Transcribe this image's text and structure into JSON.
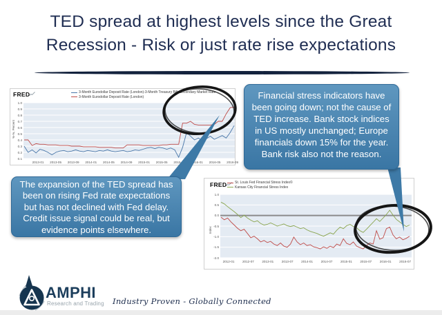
{
  "slide": {
    "title_line1": "TED spread at highest levels since the Great",
    "title_line2": "Recession - Risk or just rate rise expectations"
  },
  "callouts": {
    "left": "The expansion of the TED spread has been on rising Fed rate expectations but has not declined with Fed delay.  Credit issue signal could be real, but evidence points elsewhere.",
    "right": "Financial stress indicators have been going down; not the cause of TED increase. Bank stock indices in US mostly unchanged; Europe financials down 15% for the year. Bank risk also not the reason."
  },
  "footer": {
    "brand": "AMPHI",
    "brand_sub": "Research and Trading",
    "tagline": "Industry Proven - Globally Connected"
  },
  "colors": {
    "title_navy": "#1f2d52",
    "callout_blue": "#3a76a4",
    "annotation_black": "#161616",
    "fred_plot_bg": "#e4ebf3",
    "series_blue": "#4876a8",
    "series_red": "#bf4a47",
    "series_green": "#8aa54e"
  },
  "chart_data": [
    {
      "type": "line",
      "source_label": "FRED",
      "title": "",
      "xlabel": "",
      "ylabel": "%-%, Percent",
      "ylim": [
        0.1,
        1.0
      ],
      "yticks": [
        1.0,
        0.9,
        0.8,
        0.7,
        0.6,
        0.5,
        0.4,
        0.3,
        0.2,
        0.1
      ],
      "grid": true,
      "legend_position": "top",
      "categories": [
        "2013-01",
        "2013-05",
        "2013-09",
        "2014-01",
        "2014-05",
        "2014-09",
        "2015-01",
        "2015-05",
        "2015-09",
        "2016-01",
        "2016-05",
        "2016-09"
      ],
      "zero_line": false,
      "series": [
        {
          "name": "3-Month Eurodollar Deposit Rate (London)-3-Month Treasury Bill: Secondary Market Rate",
          "color": "#4876a8",
          "values": [
            0.3,
            0.2,
            0.24,
            0.19,
            0.25,
            0.23,
            0.2,
            0.16,
            0.2,
            0.22,
            0.23,
            0.21,
            0.22,
            0.24,
            0.22,
            0.21,
            0.23,
            0.22,
            0.21,
            0.23,
            0.22,
            0.24,
            0.22,
            0.21,
            0.22,
            0.23,
            0.21,
            0.22,
            0.24,
            0.23,
            0.25,
            0.27,
            0.28,
            0.26,
            0.28,
            0.27,
            0.25,
            0.27,
            0.24,
            0.12,
            0.28,
            0.52,
            0.46,
            0.4,
            0.43,
            0.38,
            0.42,
            0.46,
            0.41,
            0.44,
            0.47,
            0.43,
            0.52,
            0.63
          ]
        },
        {
          "name": "3-Month Eurodollar Deposit Rate (London)",
          "color": "#bf4a47",
          "values": [
            0.4,
            0.4,
            0.31,
            0.34,
            0.33,
            0.33,
            0.32,
            0.32,
            0.32,
            0.31,
            0.31,
            0.31,
            0.3,
            0.3,
            0.3,
            0.29,
            0.29,
            0.29,
            0.29,
            0.28,
            0.28,
            0.28,
            0.28,
            0.27,
            0.27,
            0.27,
            0.32,
            0.32,
            0.32,
            0.32,
            0.31,
            0.31,
            0.31,
            0.31,
            0.31,
            0.32,
            0.32,
            0.33,
            0.33,
            0.33,
            0.67,
            0.67,
            0.7,
            0.65,
            0.64,
            0.64,
            0.64,
            0.64,
            0.65,
            0.7,
            0.7,
            0.82,
            0.92,
            0.93
          ]
        }
      ]
    },
    {
      "type": "line",
      "source_label": "FRED",
      "title": "",
      "xlabel": "",
      "ylabel": "Index",
      "ylim": [
        -2.0,
        1.0
      ],
      "yticks": [
        1.0,
        0.5,
        0.0,
        -0.5,
        -1.0,
        -1.5,
        -2.0
      ],
      "grid": true,
      "legend_position": "top",
      "categories": [
        "2012-01",
        "2012-07",
        "2013-01",
        "2013-07",
        "2014-01",
        "2014-07",
        "2015-01",
        "2015-07",
        "2016-01",
        "2016-07"
      ],
      "zero_line": true,
      "series": [
        {
          "name": "St. Louis Fed Financial Stress Index©",
          "color": "#bf4a47",
          "values": [
            -0.08,
            -0.2,
            -0.12,
            -0.3,
            -0.45,
            -0.6,
            -0.72,
            -0.65,
            -0.85,
            -1.05,
            -0.98,
            -1.1,
            -1.25,
            -1.18,
            -1.28,
            -1.22,
            -1.35,
            -1.42,
            -1.3,
            -1.45,
            -1.5,
            -1.35,
            -1.02,
            -1.25,
            -1.38,
            -1.3,
            -1.42,
            -1.38,
            -1.48,
            -1.52,
            -1.58,
            -1.48,
            -1.55,
            -1.45,
            -1.52,
            -1.35,
            -1.42,
            -1.1,
            -1.32,
            -1.38,
            -1.25,
            -1.45,
            -1.52,
            -1.58,
            -1.42,
            -1.3,
            -1.35,
            -0.72,
            -1.12,
            -1.05,
            -0.62,
            -0.55,
            -0.92,
            -1.1,
            -1.02,
            -1.15,
            -1.08,
            -0.98
          ]
        },
        {
          "name": "Kansas City Financial Stress Index",
          "color": "#8aa54e",
          "values": [
            0.63,
            0.55,
            0.42,
            0.3,
            0.18,
            0.05,
            -0.1,
            0.02,
            -0.12,
            -0.22,
            -0.3,
            -0.25,
            -0.38,
            -0.45,
            -0.42,
            -0.35,
            -0.42,
            -0.5,
            -0.45,
            -0.4,
            -0.48,
            -0.52,
            -0.48,
            -0.55,
            -0.62,
            -0.58,
            -0.68,
            -0.75,
            -0.8,
            -0.85,
            -0.92,
            -0.98,
            -0.9,
            -0.82,
            -0.88,
            -0.7,
            -0.55,
            -0.62,
            -0.48,
            -0.42,
            -0.52,
            -0.58,
            -0.72,
            -0.8,
            -0.65,
            -0.48,
            -0.32,
            -0.15,
            -0.28,
            -0.12,
            0.05,
            0.25,
            0.02,
            -0.18,
            -0.3,
            -0.42,
            -0.52,
            -0.45
          ]
        }
      ]
    }
  ]
}
